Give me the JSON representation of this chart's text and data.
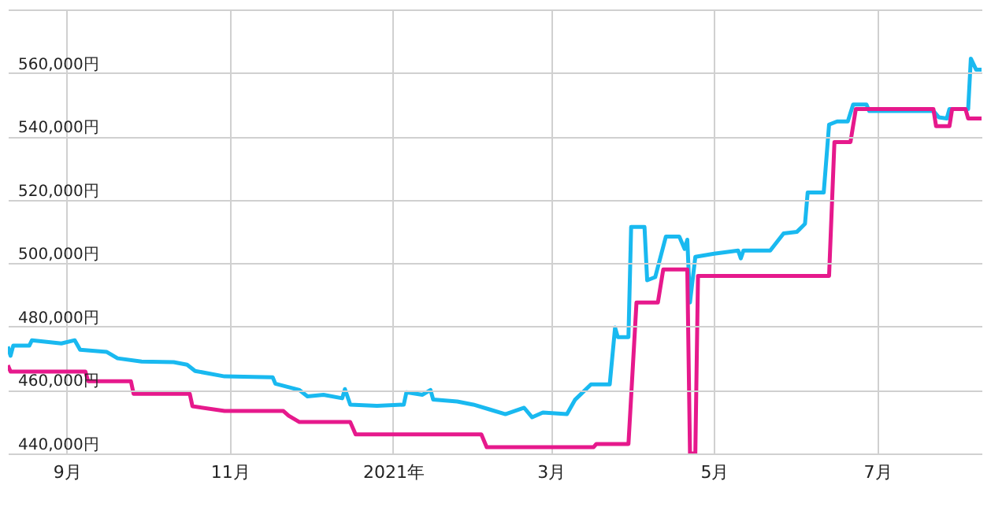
{
  "chart_data": {
    "type": "line",
    "line_style": "solid",
    "marker": "none",
    "grid": true,
    "xlim": [
      "2020-08-10",
      "2021-08-09"
    ],
    "xticks": [
      {
        "value": "2020-09-01",
        "label": "9月"
      },
      {
        "value": "2020-11-01",
        "label": "11月"
      },
      {
        "value": "2021-01-01",
        "label": "2021年"
      },
      {
        "value": "2021-03-01",
        "label": "3月"
      },
      {
        "value": "2021-05-01",
        "label": "5月"
      },
      {
        "value": "2021-07-01",
        "label": "7月"
      }
    ],
    "ylim": [
      440000,
      580000
    ],
    "yticks": [
      {
        "value": 440000,
        "label": "440,000円"
      },
      {
        "value": 460000,
        "label": "460,000円"
      },
      {
        "value": 480000,
        "label": "480,000円"
      },
      {
        "value": 500000,
        "label": "500,000円"
      },
      {
        "value": 520000,
        "label": "520,000円"
      },
      {
        "value": 540000,
        "label": "540,000円"
      },
      {
        "value": 560000,
        "label": "560,000円"
      },
      {
        "value": 580000,
        "label": null
      }
    ],
    "series": [
      {
        "color": "#19b9f0",
        "x": [
          "2020-08-10",
          "2020-08-11",
          "2020-08-12",
          "2020-08-18",
          "2020-08-19",
          "2020-08-30",
          "2020-09-04",
          "2020-09-06",
          "2020-09-16",
          "2020-09-20",
          "2020-09-29",
          "2020-10-11",
          "2020-10-16",
          "2020-10-19",
          "2020-10-30",
          "2020-11-17",
          "2020-11-18",
          "2020-11-27",
          "2020-11-30",
          "2020-12-06",
          "2020-12-13",
          "2020-12-14",
          "2020-12-16",
          "2020-12-26",
          "2021-01-05",
          "2021-01-06",
          "2021-01-12",
          "2021-01-15",
          "2021-01-16",
          "2021-01-25",
          "2021-01-31",
          "2021-02-06",
          "2021-02-12",
          "2021-02-19",
          "2021-02-22",
          "2021-02-26",
          "2021-03-07",
          "2021-03-10",
          "2021-03-16",
          "2021-03-23",
          "2021-03-25",
          "2021-03-26",
          "2021-03-30",
          "2021-03-31",
          "2021-04-05",
          "2021-04-06",
          "2021-04-09",
          "2021-04-13",
          "2021-04-18",
          "2021-04-20",
          "2021-04-21",
          "2021-04-22",
          "2021-04-24",
          "2021-05-01",
          "2021-05-10",
          "2021-05-11",
          "2021-05-12",
          "2021-05-22",
          "2021-05-27",
          "2021-06-01",
          "2021-06-04",
          "2021-06-05",
          "2021-06-11",
          "2021-06-13",
          "2021-06-16",
          "2021-06-20",
          "2021-06-22",
          "2021-06-27",
          "2021-06-28",
          "2021-07-22",
          "2021-07-24",
          "2021-07-27",
          "2021-07-28",
          "2021-08-04",
          "2021-08-05",
          "2021-08-07",
          "2021-08-09"
        ],
        "values": [
          473700,
          470800,
          474000,
          474000,
          475700,
          474700,
          475700,
          472700,
          472000,
          470000,
          469000,
          468800,
          468000,
          466000,
          464300,
          464000,
          462000,
          460000,
          458000,
          458500,
          457400,
          460300,
          455400,
          455000,
          455400,
          459300,
          458500,
          460000,
          457000,
          456400,
          455400,
          453900,
          452400,
          454400,
          451400,
          452900,
          452400,
          456900,
          461800,
          461800,
          479700,
          476700,
          476700,
          511400,
          511400,
          494600,
          495600,
          508400,
          508400,
          504500,
          507400,
          487600,
          502000,
          503000,
          504000,
          501500,
          504000,
          504000,
          509400,
          509900,
          512400,
          522300,
          522300,
          543700,
          544700,
          544700,
          550000,
          550000,
          548000,
          548000,
          546000,
          545600,
          548600,
          548600,
          564500,
          561000,
          561000
        ]
      },
      {
        "color": "#e6198c",
        "x": [
          "2020-08-10",
          "2020-08-11",
          "2020-09-08",
          "2020-09-09",
          "2020-09-25",
          "2020-09-26",
          "2020-10-17",
          "2020-10-18",
          "2020-10-30",
          "2020-11-21",
          "2020-11-23",
          "2020-11-27",
          "2020-12-16",
          "2020-12-18",
          "2021-02-03",
          "2021-02-05",
          "2021-03-17",
          "2021-03-18",
          "2021-03-30",
          "2021-04-02",
          "2021-04-10",
          "2021-04-12",
          "2021-04-21",
          "2021-04-22",
          "2021-04-24",
          "2021-04-25",
          "2021-06-13",
          "2021-06-15",
          "2021-06-21",
          "2021-06-23",
          "2021-07-22",
          "2021-07-23",
          "2021-07-28",
          "2021-07-29",
          "2021-08-03",
          "2021-08-04",
          "2021-08-09"
        ],
        "values": [
          467800,
          465800,
          465800,
          462800,
          462800,
          458800,
          458800,
          454900,
          453400,
          453400,
          451900,
          449900,
          449900,
          446000,
          446000,
          442000,
          442000,
          443000,
          443000,
          487600,
          487600,
          498000,
          498000,
          440000,
          440000,
          496000,
          496000,
          538200,
          538200,
          548600,
          548600,
          543200,
          543200,
          548600,
          548600,
          545600,
          545600
        ]
      }
    ]
  }
}
